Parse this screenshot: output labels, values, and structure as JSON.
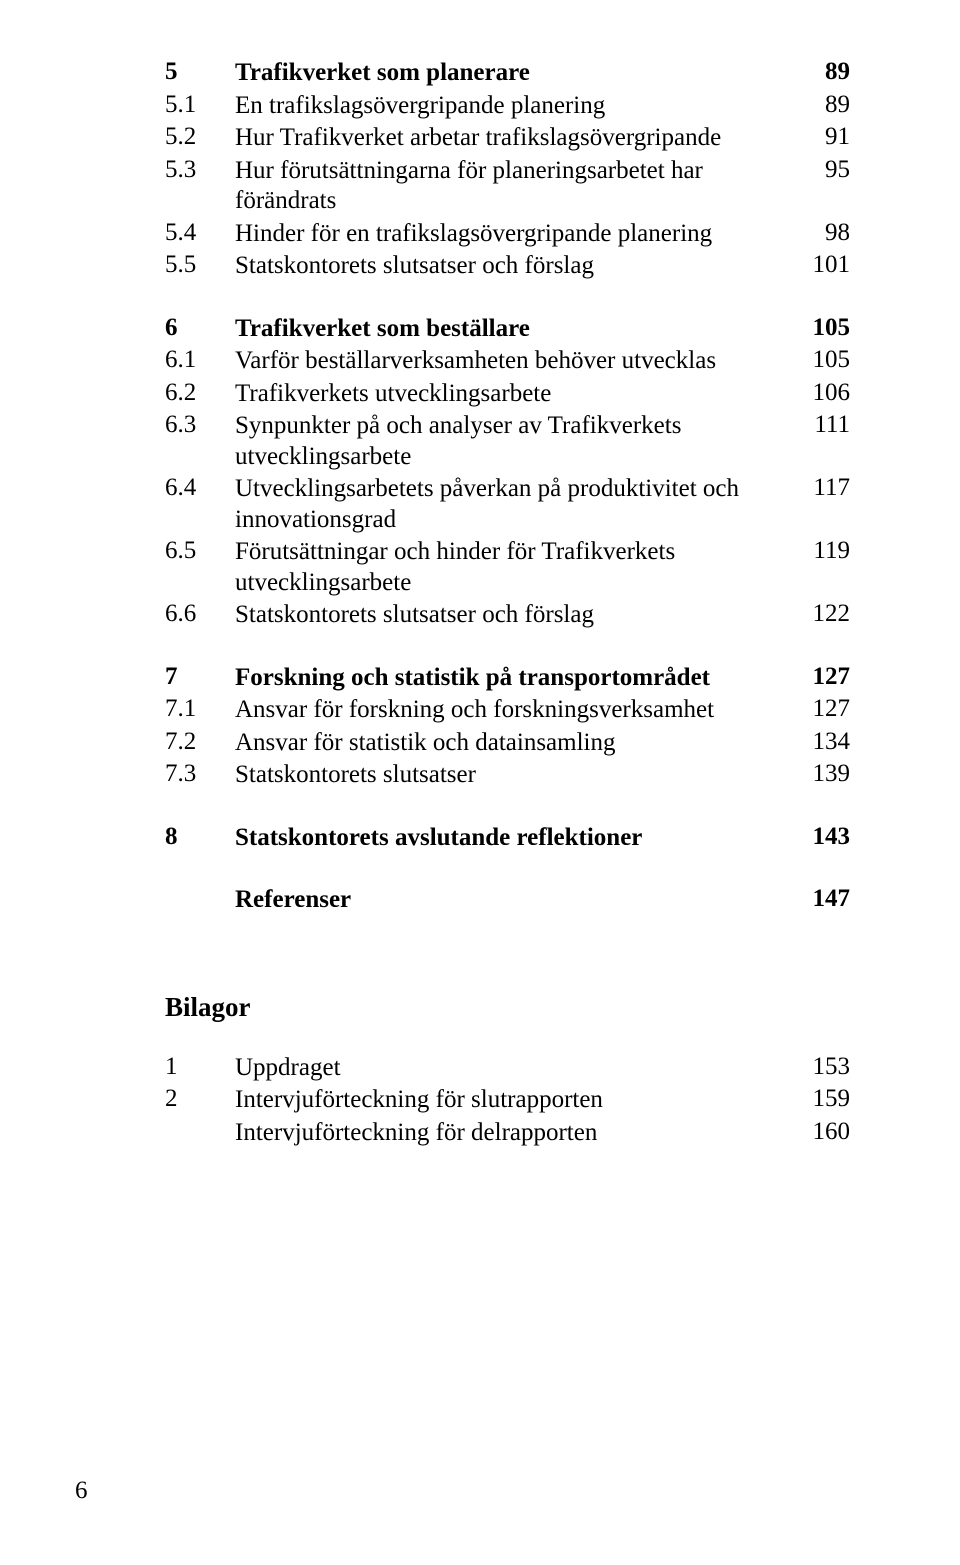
{
  "toc": [
    {
      "num": "5",
      "title": "Trafikverket som planerare",
      "page": "89",
      "bold": true,
      "gapAfter": 0
    },
    {
      "num": "5.1",
      "title": "En trafikslagsövergripande planering",
      "page": "89",
      "bold": false,
      "gapAfter": 0
    },
    {
      "num": "5.2",
      "title": "Hur Trafikverket arbetar trafikslagsövergripande",
      "page": "91",
      "bold": false,
      "gapAfter": 0
    },
    {
      "num": "5.3",
      "title": "Hur förutsättningarna för planeringsarbetet har förändrats",
      "page": "95",
      "bold": false,
      "gapAfter": 0
    },
    {
      "num": "5.4",
      "title": "Hinder för en trafikslagsövergripande planering",
      "page": "98",
      "bold": false,
      "gapAfter": 0
    },
    {
      "num": "5.5",
      "title": "Statskontorets slutsatser och förslag",
      "page": "101",
      "bold": false,
      "gapAfter": 30
    },
    {
      "num": "6",
      "title": "Trafikverket som beställare",
      "page": "105",
      "bold": true,
      "gapAfter": 0
    },
    {
      "num": "6.1",
      "title": "Varför beställarverksamheten behöver utvecklas",
      "page": "105",
      "bold": false,
      "gapAfter": 0
    },
    {
      "num": "6.2",
      "title": "Trafikverkets utvecklingsarbete",
      "page": "106",
      "bold": false,
      "gapAfter": 0
    },
    {
      "num": "6.3",
      "title": "Synpunkter på och analyser av Trafikverkets utvecklingsarbete",
      "page": "111",
      "bold": false,
      "gapAfter": 0
    },
    {
      "num": "6.4",
      "title": "Utvecklingsarbetets påverkan på produktivitet och innovationsgrad",
      "page": "117",
      "bold": false,
      "gapAfter": 0
    },
    {
      "num": "6.5",
      "title": "Förutsättningar och hinder för Trafikverkets utvecklingsarbete",
      "page": "119",
      "bold": false,
      "gapAfter": 0
    },
    {
      "num": "6.6",
      "title": "Statskontorets slutsatser och förslag",
      "page": "122",
      "bold": false,
      "gapAfter": 30
    },
    {
      "num": "7",
      "title": "Forskning och statistik på transportområdet",
      "page": "127",
      "bold": true,
      "gapAfter": 0
    },
    {
      "num": "7.1",
      "title": "Ansvar för forskning och forskningsverksamhet",
      "page": "127",
      "bold": false,
      "gapAfter": 0
    },
    {
      "num": "7.2",
      "title": "Ansvar för statistik och datainsamling",
      "page": "134",
      "bold": false,
      "gapAfter": 0
    },
    {
      "num": "7.3",
      "title": "Statskontorets slutsatser",
      "page": "139",
      "bold": false,
      "gapAfter": 30
    },
    {
      "num": "8",
      "title": "Statskontorets avslutande reflektioner",
      "page": "143",
      "bold": true,
      "gapAfter": 30
    },
    {
      "num": "",
      "title": "Referenser",
      "page": "147",
      "bold": true,
      "gapAfter": 74
    }
  ],
  "bilagorHeading": "Bilagor",
  "bilagor": [
    {
      "num": "1",
      "title": "Uppdraget",
      "page": "153"
    },
    {
      "num": "2",
      "title": "Intervjuförteckning för slutrapporten",
      "page": "159"
    },
    {
      "num": "",
      "title": "Intervjuförteckning för delrapporten",
      "page": "160"
    }
  ],
  "pageNumber": "6",
  "style": {
    "fontFamily": "Times New Roman",
    "baseFontSize": 25,
    "headingFontSize": 27,
    "textColor": "#000000",
    "backgroundColor": "#ffffff",
    "numColWidth": 70,
    "pageColWidth": 55,
    "lineHeight": 1.22
  }
}
